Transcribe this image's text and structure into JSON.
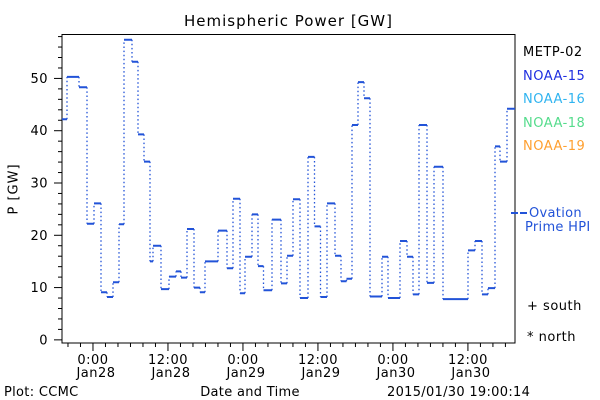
{
  "title": "Hemispheric Power [GW]",
  "footer": {
    "plot_credit": "Plot: CCMC",
    "xaxis_title": "Date and Time",
    "timestamp": "2015/01/30 19:00:14"
  },
  "legend": {
    "satellites": [
      {
        "label": "METP-02",
        "color": "#000000"
      },
      {
        "label": "NOAA-15",
        "color": "#1f2fe0"
      },
      {
        "label": "NOAA-16",
        "color": "#30b4f0"
      },
      {
        "label": "NOAA-18",
        "color": "#55dc8c"
      },
      {
        "label": "NOAA-19",
        "color": "#ffa030"
      }
    ],
    "model": {
      "label_line1": "Ovation",
      "label_line2": "Prime HPI",
      "color": "#2253d8",
      "line_style": "dashed"
    },
    "markers": [
      {
        "symbol": "+",
        "label": "south"
      },
      {
        "symbol": "*",
        "label": "north"
      }
    ]
  },
  "chart_data": {
    "type": "line",
    "subtype": "step-histogram, solid horizontal levels joined by dotted verticals",
    "title": "Hemispheric Power [GW]",
    "xlabel": "Date and Time",
    "ylabel": "P [GW]",
    "ylim": [
      -0.6,
      58.4
    ],
    "y_major_ticks": [
      0,
      10,
      20,
      30,
      40,
      50
    ],
    "y_minor_tick_step_gw": 2,
    "grid": false,
    "legend_position": "right",
    "x_major_ticks": [
      {
        "f": 0.0684,
        "time": "0:00",
        "date": "Jan28"
      },
      {
        "f": 0.234,
        "time": "12:00",
        "date": "Jan28"
      },
      {
        "f": 0.3996,
        "time": "0:00",
        "date": "Jan29"
      },
      {
        "f": 0.5651,
        "time": "12:00",
        "date": "Jan29"
      },
      {
        "f": 0.7307,
        "time": "0:00",
        "date": "Jan30"
      },
      {
        "f": 0.8962,
        "time": "12:00",
        "date": "Jan30"
      }
    ],
    "x_minor_first_f": 0.0132,
    "x_minor_step_f": 0.02759,
    "series": [
      {
        "name": "Ovation Prime HPI",
        "color": "#2253d8",
        "end_f": 1.0,
        "steps": [
          [
            0.0,
            42.2
          ],
          [
            0.011,
            50.3
          ],
          [
            0.0375,
            48.3
          ],
          [
            0.0552,
            22.2
          ],
          [
            0.0706,
            26.1
          ],
          [
            0.0861,
            9.1
          ],
          [
            0.0993,
            8.2
          ],
          [
            0.1126,
            11.0
          ],
          [
            0.1258,
            22.1
          ],
          [
            0.1369,
            57.4
          ],
          [
            0.1545,
            53.2
          ],
          [
            0.1678,
            39.3
          ],
          [
            0.181,
            34.1
          ],
          [
            0.1943,
            15.0
          ],
          [
            0.2009,
            18.0
          ],
          [
            0.2185,
            9.7
          ],
          [
            0.2362,
            12.1
          ],
          [
            0.2517,
            13.1
          ],
          [
            0.2627,
            11.9
          ],
          [
            0.276,
            21.2
          ],
          [
            0.2914,
            10.0
          ],
          [
            0.3047,
            9.1
          ],
          [
            0.3157,
            15.0
          ],
          [
            0.3444,
            20.9
          ],
          [
            0.3643,
            13.7
          ],
          [
            0.3775,
            27.0
          ],
          [
            0.393,
            8.9
          ],
          [
            0.404,
            15.9
          ],
          [
            0.4194,
            24.0
          ],
          [
            0.4327,
            14.1
          ],
          [
            0.4448,
            9.5
          ],
          [
            0.4636,
            23.0
          ],
          [
            0.4834,
            10.8
          ],
          [
            0.4967,
            16.1
          ],
          [
            0.5099,
            26.9
          ],
          [
            0.5254,
            8.0
          ],
          [
            0.543,
            35.0
          ],
          [
            0.5574,
            21.7
          ],
          [
            0.5707,
            8.2
          ],
          [
            0.585,
            26.1
          ],
          [
            0.6026,
            16.1
          ],
          [
            0.6159,
            11.2
          ],
          [
            0.628,
            11.7
          ],
          [
            0.6402,
            41.1
          ],
          [
            0.6534,
            49.3
          ],
          [
            0.6667,
            46.2
          ],
          [
            0.6799,
            8.3
          ],
          [
            0.7064,
            15.9
          ],
          [
            0.7196,
            8.0
          ],
          [
            0.7461,
            18.9
          ],
          [
            0.7616,
            15.9
          ],
          [
            0.7748,
            8.7
          ],
          [
            0.7881,
            41.1
          ],
          [
            0.8057,
            10.9
          ],
          [
            0.8212,
            33.1
          ],
          [
            0.841,
            7.8
          ],
          [
            0.8962,
            17.1
          ],
          [
            0.9117,
            18.9
          ],
          [
            0.9272,
            8.7
          ],
          [
            0.9404,
            9.9
          ],
          [
            0.9559,
            37.0
          ],
          [
            0.9669,
            34.1
          ],
          [
            0.9823,
            44.2
          ]
        ]
      }
    ]
  }
}
